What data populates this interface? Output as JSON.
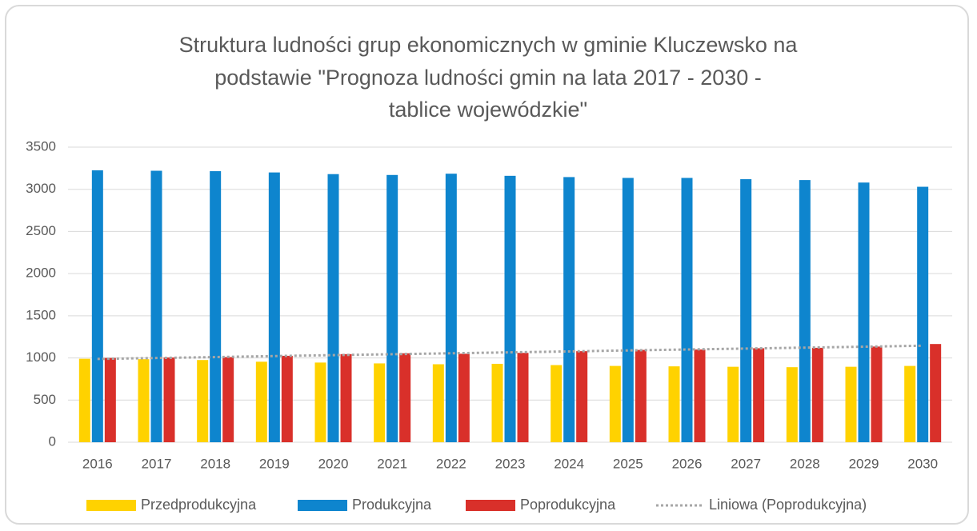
{
  "chart_data": {
    "type": "bar",
    "title": [
      "Struktura ludności grup ekonomicznych w gminie Kluczewsko na",
      "podstawie \"Prognoza ludności gmin na lata 2017 - 2030 -",
      "tablice wojewódzkie\""
    ],
    "categories": [
      "2016",
      "2017",
      "2018",
      "2019",
      "2020",
      "2021",
      "2022",
      "2023",
      "2024",
      "2025",
      "2026",
      "2027",
      "2028",
      "2029",
      "2030"
    ],
    "series": [
      {
        "name": "Przedprodukcyjna",
        "color": "#FFD200",
        "values": [
          990,
          985,
          975,
          955,
          945,
          935,
          925,
          930,
          915,
          905,
          900,
          895,
          890,
          895,
          905
        ]
      },
      {
        "name": "Produkcyjna",
        "color": "#0E85CE",
        "values": [
          3225,
          3220,
          3215,
          3200,
          3180,
          3170,
          3185,
          3160,
          3145,
          3135,
          3135,
          3120,
          3110,
          3080,
          3030
        ]
      },
      {
        "name": "Poprodukcyjna",
        "color": "#D9302A",
        "values": [
          1000,
          1005,
          1010,
          1025,
          1045,
          1055,
          1050,
          1060,
          1080,
          1095,
          1100,
          1115,
          1120,
          1135,
          1165
        ]
      }
    ],
    "trendline": {
      "name": "Liniowa (Poprodukcyjna)",
      "color": "#A6A6A6",
      "values": [
        988,
        999,
        1010,
        1022,
        1033,
        1044,
        1055,
        1066,
        1077,
        1089,
        1100,
        1111,
        1122,
        1133,
        1145
      ]
    },
    "ylim": [
      0,
      3500
    ],
    "yticks": [
      0,
      500,
      1000,
      1500,
      2000,
      2500,
      3000,
      3500
    ],
    "grid": true,
    "legend": "bottom"
  }
}
